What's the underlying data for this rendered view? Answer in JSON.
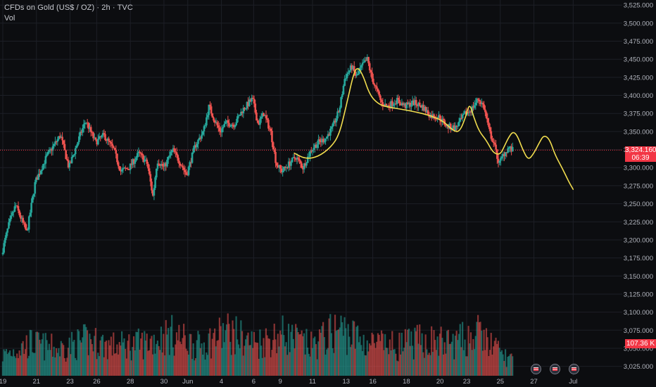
{
  "header": {
    "title": "CFDs on Gold (US$ / OZ) · 2h · TVC",
    "volume_label": "Vol"
  },
  "labels": {
    "last_price": "3,324.160",
    "countdown": "06:39",
    "last_volume": "107.36 K"
  },
  "colors": {
    "background": "#0c0d10",
    "up": "#26a69a",
    "down": "#ef5350",
    "projection": "#f0dc4e",
    "price_line": "#f23645",
    "grid": "#1d1f26",
    "text": "#b2b5be"
  },
  "icons": [
    "us-flag-icon",
    "us-flag-icon",
    "us-flag-icon"
  ],
  "chart_data": {
    "type": "candlestick",
    "title": "CFDs on Gold (US$ / OZ) · 2h · TVC",
    "y_axis": {
      "ticks": [
        "3,525.000",
        "3,500.000",
        "3,475.000",
        "3,450.000",
        "3,425.000",
        "3,400.000",
        "3,375.000",
        "3,350.000",
        "3,325.000",
        "3,300.000",
        "3,275.000",
        "3,250.000",
        "3,225.000",
        "3,200.000",
        "3,175.000",
        "3,150.000",
        "3,125.000",
        "3,100.000",
        "3,075.000",
        "3,050.000",
        "3,025.000"
      ],
      "range": [
        3012,
        3532
      ]
    },
    "x_axis": {
      "ticks": [
        {
          "label": "19",
          "t": 0
        },
        {
          "label": "21",
          "t": 2.4
        },
        {
          "label": "23",
          "t": 4.8
        },
        {
          "label": "26",
          "t": 6.7
        },
        {
          "label": "28",
          "t": 9.1
        },
        {
          "label": "30",
          "t": 11.5
        },
        {
          "label": "Jun",
          "t": 13.2
        },
        {
          "label": "4",
          "t": 15.6
        },
        {
          "label": "6",
          "t": 17.9
        },
        {
          "label": "9",
          "t": 19.8
        },
        {
          "label": "11",
          "t": 22.1
        },
        {
          "label": "13",
          "t": 24.5
        },
        {
          "label": "16",
          "t": 26.4
        },
        {
          "label": "18",
          "t": 28.8
        },
        {
          "label": "20",
          "t": 31.2
        },
        {
          "label": "23",
          "t": 33.1
        },
        {
          "label": "25",
          "t": 35.5
        },
        {
          "label": "27",
          "t": 37.9
        },
        {
          "label": "Jul",
          "t": 40.7
        }
      ],
      "range": [
        -0.2,
        44.2
      ]
    },
    "price_path": [
      [
        0,
        3180
      ],
      [
        0.5,
        3220
      ],
      [
        1.0,
        3248
      ],
      [
        1.8,
        3210
      ],
      [
        2.4,
        3280
      ],
      [
        3.2,
        3315
      ],
      [
        4.2,
        3345
      ],
      [
        4.8,
        3300
      ],
      [
        5.6,
        3345
      ],
      [
        6.0,
        3365
      ],
      [
        6.7,
        3335
      ],
      [
        7.3,
        3345
      ],
      [
        8.0,
        3325
      ],
      [
        8.5,
        3295
      ],
      [
        9.1,
        3300
      ],
      [
        9.8,
        3320
      ],
      [
        10.4,
        3305
      ],
      [
        10.8,
        3260
      ],
      [
        11.1,
        3310
      ],
      [
        11.6,
        3300
      ],
      [
        12.2,
        3325
      ],
      [
        12.8,
        3305
      ],
      [
        13.2,
        3290
      ],
      [
        13.8,
        3330
      ],
      [
        14.4,
        3350
      ],
      [
        14.8,
        3385
      ],
      [
        15.2,
        3365
      ],
      [
        15.6,
        3350
      ],
      [
        16.0,
        3362
      ],
      [
        16.6,
        3360
      ],
      [
        17.2,
        3380
      ],
      [
        17.9,
        3395
      ],
      [
        18.3,
        3360
      ],
      [
        18.7,
        3375
      ],
      [
        19.2,
        3350
      ],
      [
        19.6,
        3305
      ],
      [
        20.0,
        3295
      ],
      [
        20.5,
        3305
      ],
      [
        21.0,
        3315
      ],
      [
        21.5,
        3300
      ],
      [
        22.1,
        3325
      ],
      [
        22.6,
        3335
      ],
      [
        23.1,
        3340
      ],
      [
        23.6,
        3355
      ],
      [
        24.1,
        3380
      ],
      [
        24.5,
        3425
      ],
      [
        25.0,
        3440
      ],
      [
        25.3,
        3425
      ],
      [
        25.7,
        3440
      ],
      [
        26.1,
        3450
      ],
      [
        26.4,
        3425
      ],
      [
        26.7,
        3410
      ],
      [
        27.1,
        3390
      ],
      [
        27.5,
        3385
      ],
      [
        28.2,
        3393
      ],
      [
        28.8,
        3385
      ],
      [
        29.4,
        3390
      ],
      [
        30.0,
        3385
      ],
      [
        30.6,
        3372
      ],
      [
        31.2,
        3370
      ],
      [
        31.8,
        3357
      ],
      [
        32.4,
        3355
      ],
      [
        33.1,
        3375
      ],
      [
        33.5,
        3380
      ],
      [
        34.0,
        3395
      ],
      [
        34.4,
        3385
      ],
      [
        34.8,
        3350
      ],
      [
        35.1,
        3335
      ],
      [
        35.5,
        3305
      ],
      [
        35.8,
        3318
      ],
      [
        36.2,
        3328
      ],
      [
        36.4,
        3324.16
      ]
    ],
    "volume_profile": [
      [
        0,
        0.35
      ],
      [
        2,
        0.55
      ],
      [
        4,
        0.45
      ],
      [
        6,
        0.6
      ],
      [
        8,
        0.5
      ],
      [
        10,
        0.55
      ],
      [
        12,
        0.7
      ],
      [
        14,
        0.5
      ],
      [
        16,
        0.75
      ],
      [
        18,
        0.55
      ],
      [
        20,
        0.7
      ],
      [
        22,
        0.5
      ],
      [
        24,
        0.8
      ],
      [
        26,
        0.55
      ],
      [
        28,
        0.5
      ],
      [
        30,
        0.6
      ],
      [
        32,
        0.55
      ],
      [
        34,
        0.7
      ],
      [
        36,
        0.3
      ]
    ],
    "projection": [
      [
        20.8,
        3320
      ],
      [
        21.6,
        3312
      ],
      [
        22.5,
        3315
      ],
      [
        23.4,
        3328
      ],
      [
        24.0,
        3345
      ],
      [
        24.5,
        3385
      ],
      [
        25.0,
        3428
      ],
      [
        25.3,
        3440
      ],
      [
        25.7,
        3428
      ],
      [
        26.2,
        3400
      ],
      [
        26.8,
        3388
      ],
      [
        27.4,
        3384
      ],
      [
        28.4,
        3381
      ],
      [
        29.5,
        3377
      ],
      [
        30.5,
        3372
      ],
      [
        31.4,
        3365
      ],
      [
        32.2,
        3350
      ],
      [
        32.6,
        3350
      ],
      [
        33.0,
        3368
      ],
      [
        33.3,
        3390
      ],
      [
        33.6,
        3370
      ],
      [
        34.0,
        3350
      ],
      [
        34.5,
        3338
      ],
      [
        35.0,
        3320
      ],
      [
        35.5,
        3318
      ],
      [
        35.8,
        3330
      ],
      [
        36.1,
        3342
      ],
      [
        36.4,
        3350
      ],
      [
        36.7,
        3345
      ],
      [
        37.1,
        3325
      ],
      [
        37.5,
        3310
      ],
      [
        37.9,
        3320
      ],
      [
        38.3,
        3335
      ],
      [
        38.6,
        3345
      ],
      [
        39.0,
        3340
      ],
      [
        39.4,
        3318
      ],
      [
        39.9,
        3300
      ],
      [
        40.4,
        3280
      ],
      [
        40.7,
        3270
      ]
    ],
    "last_price": 3324.16,
    "last_volume": "107.36 K",
    "grid": true
  }
}
